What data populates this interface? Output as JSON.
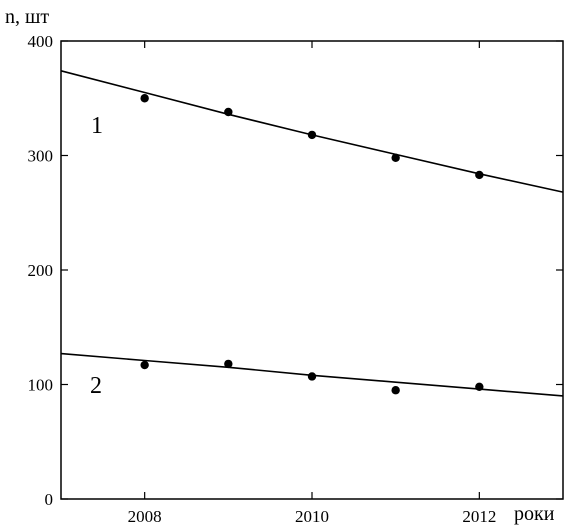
{
  "chart_data": {
    "type": "scatter",
    "title": "",
    "ylabel": "n, шт",
    "xlabel": "роки",
    "xlim": [
      2007.0,
      2013.0
    ],
    "ylim": [
      0,
      400
    ],
    "x_ticks": [
      2008,
      2010,
      2012
    ],
    "x_tick_labels": [
      "2008",
      "2010",
      "2012"
    ],
    "y_ticks": [
      0,
      100,
      200,
      300,
      400
    ],
    "y_tick_labels": [
      "0",
      "100",
      "200",
      "300",
      "400"
    ],
    "grid": false,
    "series": [
      {
        "label": "1",
        "points": [
          {
            "x": 2008,
            "y": 350
          },
          {
            "x": 2009,
            "y": 338
          },
          {
            "x": 2010,
            "y": 318
          },
          {
            "x": 2011,
            "y": 298
          },
          {
            "x": 2012,
            "y": 283
          }
        ],
        "trend": [
          {
            "x": 2007.0,
            "y": 374
          },
          {
            "x": 2008,
            "y": 355
          },
          {
            "x": 2009,
            "y": 336
          },
          {
            "x": 2010,
            "y": 318
          },
          {
            "x": 2011,
            "y": 301
          },
          {
            "x": 2012,
            "y": 284
          },
          {
            "x": 2013.0,
            "y": 268
          }
        ]
      },
      {
        "label": "2",
        "points": [
          {
            "x": 2008,
            "y": 117
          },
          {
            "x": 2009,
            "y": 118
          },
          {
            "x": 2010,
            "y": 107
          },
          {
            "x": 2011,
            "y": 95
          },
          {
            "x": 2012,
            "y": 98
          }
        ],
        "trend": [
          {
            "x": 2007.0,
            "y": 127
          },
          {
            "x": 2008,
            "y": 121
          },
          {
            "x": 2009,
            "y": 115
          },
          {
            "x": 2010,
            "y": 108
          },
          {
            "x": 2011,
            "y": 102
          },
          {
            "x": 2012,
            "y": 96
          },
          {
            "x": 2013.0,
            "y": 90
          }
        ]
      }
    ]
  }
}
